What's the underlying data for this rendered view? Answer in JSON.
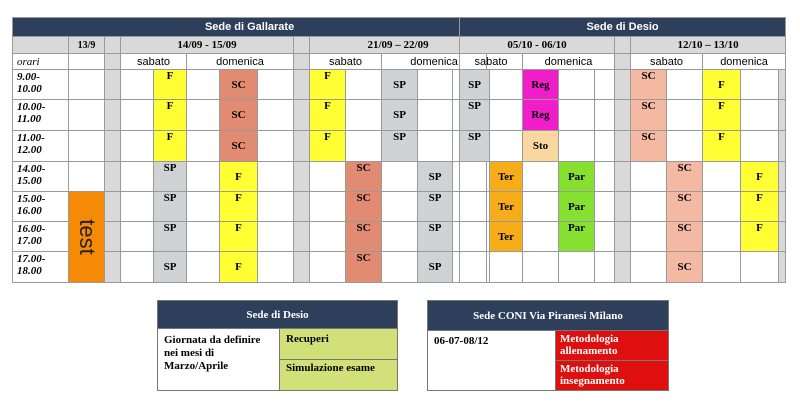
{
  "gallarate": {
    "title": "Sede di Gallarate",
    "date_single": "13/9",
    "week1": "14/09 - 15/09",
    "week2": "21/09 – 22/09",
    "orari": "orari",
    "sabato": "sabato",
    "domenica": "domenica",
    "times": [
      "9.00-\n10.00",
      "10.00-\n11.00",
      "11.00-\n12.00",
      "14.00-\n15.00",
      "15.00-\n16.00",
      "16.00-\n17.00",
      "17.00-\n18.00"
    ],
    "test": "test",
    "codes": {
      "F": "F",
      "SC": "SC",
      "SP": "SP"
    }
  },
  "desio": {
    "title": "Sede di Desio",
    "week1": "05/10 - 06/10",
    "week2": "12/10 – 13/10",
    "sabato": "sabato",
    "domenica": "domenica",
    "codes": {
      "SP": "SP",
      "Reg": "Reg",
      "Sto": "Sto",
      "Ter": "Ter",
      "Par": "Par",
      "SC": "SC",
      "F": "F"
    }
  },
  "legend_desio": {
    "title": "Sede di Desio",
    "note": "Giornata da definire nei mesi di Marzo/Aprile",
    "item1": "Recuperi",
    "item2": "Simulazione esame"
  },
  "legend_coni": {
    "title": "Sede CONI Via Piranesi Milano",
    "dates": "06-07-08/12",
    "item1": "Metodologia allenamento",
    "item2": "Metodologia insegnamento"
  },
  "colors": {
    "header": "#2e3f5c",
    "F": "#ffff33",
    "SC": "#e08b72",
    "SP": "#cfd3d4",
    "Reg": "#f01ec8",
    "Sto": "#fad7a1",
    "Ter": "#f7ad1a",
    "Par": "#86e030",
    "test": "#f58a07",
    "recuperi": "#d2e07a",
    "metodologia": "#e00f0f"
  }
}
